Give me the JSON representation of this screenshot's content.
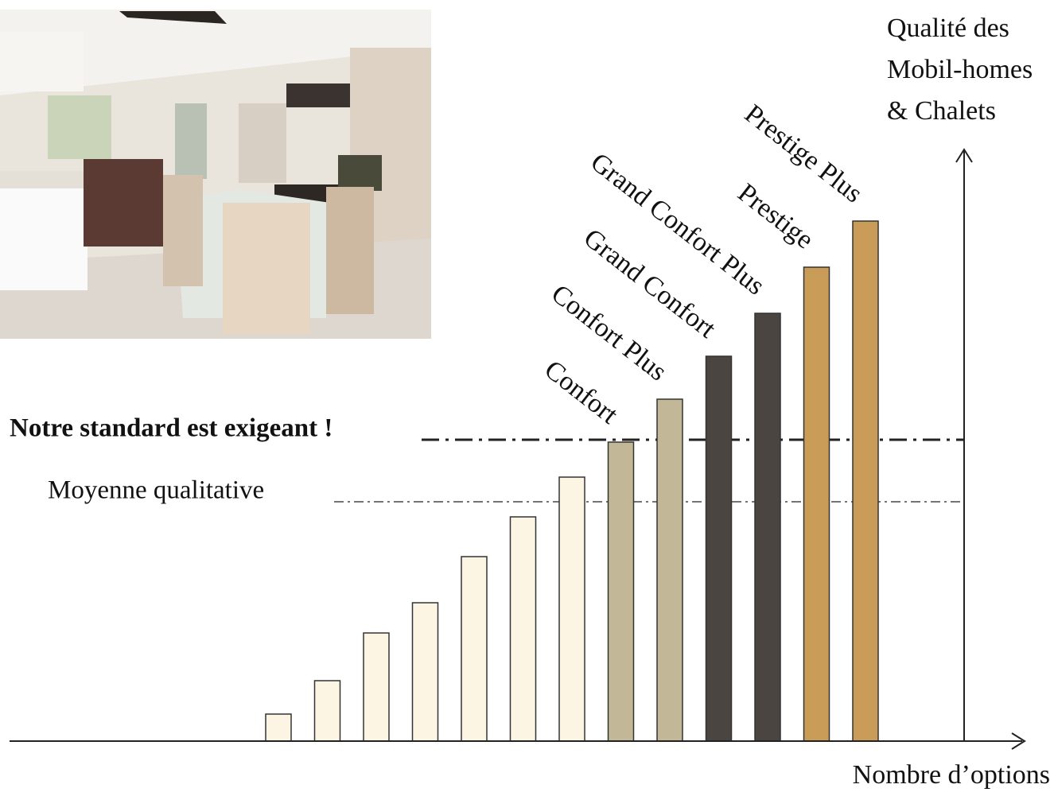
{
  "chart_data": {
    "type": "bar",
    "y_axis_title": [
      "Qualité des",
      "Mobil-homes",
      "& Chalets"
    ],
    "x_axis_title": "Nombre d’options",
    "categories": [
      null,
      null,
      null,
      null,
      null,
      null,
      null,
      "Confort",
      "Confort Plus",
      "Grand Confort",
      "Grand Confort Plus",
      "Prestige",
      "Prestige Plus"
    ],
    "values": [
      34,
      76,
      136,
      174,
      232,
      282,
      332,
      376,
      430,
      484,
      538,
      596,
      654
    ],
    "colors": [
      "#fdf5e4",
      "#fdf5e4",
      "#fdf5e4",
      "#fdf5e4",
      "#fdf5e4",
      "#fdf5e4",
      "#fdf5e4",
      "#c2b796",
      "#c2b796",
      "#4a4541",
      "#4a4541",
      "#c99c57",
      "#c99c57"
    ],
    "ylim": [
      0,
      750
    ],
    "reference_lines": [
      {
        "label": "Notre standard  est exigeant !",
        "value": 379
      },
      {
        "label": "Moyenne qualitative",
        "value": 301
      }
    ]
  }
}
